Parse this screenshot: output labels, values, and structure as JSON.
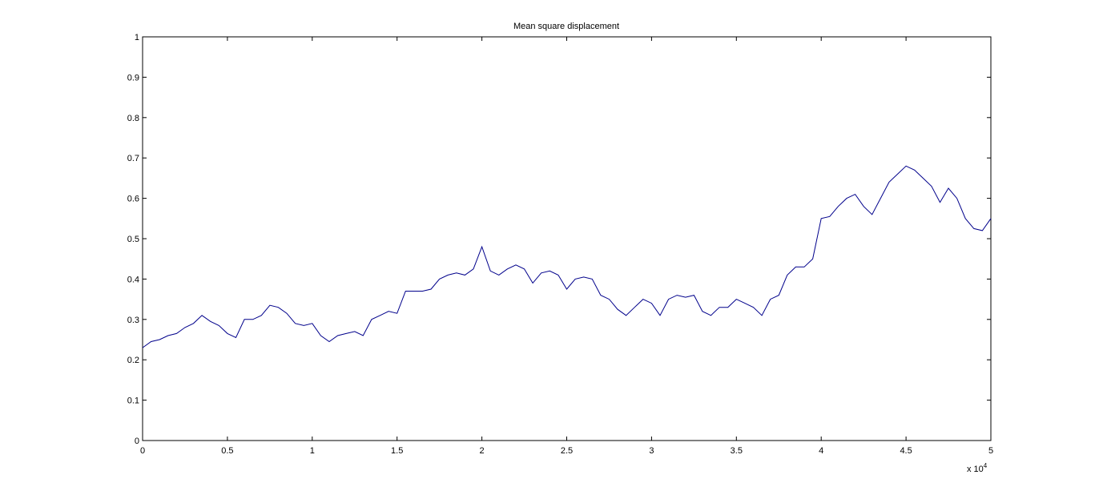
{
  "chart_data": {
    "type": "line",
    "title": "Mean square displacement",
    "xlabel": "",
    "ylabel": "",
    "x_multiplier_label": {
      "base": "x 10",
      "exponent": "4"
    },
    "xlim": [
      0,
      5
    ],
    "ylim": [
      0,
      1
    ],
    "xticks": [
      "0",
      "0.5",
      "1",
      "1.5",
      "2",
      "2.5",
      "3",
      "3.5",
      "4",
      "4.5",
      "5"
    ],
    "yticks": [
      "0",
      "0.1",
      "0.2",
      "0.3",
      "0.4",
      "0.5",
      "0.6",
      "0.7",
      "0.8",
      "0.9",
      "1"
    ],
    "grid": false,
    "line_color": "#00008b",
    "series": [
      {
        "x": [
          0,
          0.05,
          0.1,
          0.15,
          0.2,
          0.25,
          0.3,
          0.35,
          0.4,
          0.45,
          0.5,
          0.55,
          0.6,
          0.65,
          0.7,
          0.75,
          0.8,
          0.85,
          0.9,
          0.95,
          1.0,
          1.05,
          1.1,
          1.15,
          1.2,
          1.25,
          1.3,
          1.35,
          1.4,
          1.45,
          1.5,
          1.55,
          1.6,
          1.65,
          1.7,
          1.75,
          1.8,
          1.85,
          1.9,
          1.95,
          2.0,
          2.05,
          2.1,
          2.15,
          2.2,
          2.25,
          2.3,
          2.35,
          2.4,
          2.45,
          2.5,
          2.55,
          2.6,
          2.65,
          2.7,
          2.75,
          2.8,
          2.85,
          2.9,
          2.95,
          3.0,
          3.05,
          3.1,
          3.15,
          3.2,
          3.25,
          3.3,
          3.35,
          3.4,
          3.45,
          3.5,
          3.55,
          3.6,
          3.65,
          3.7,
          3.75,
          3.8,
          3.85,
          3.9,
          3.95,
          4.0,
          4.05,
          4.1,
          4.15,
          4.2,
          4.25,
          4.3,
          4.35,
          4.4,
          4.45,
          4.5,
          4.55,
          4.6,
          4.65,
          4.7,
          4.75,
          4.8,
          4.85,
          4.9,
          4.95,
          5.0
        ],
        "y": [
          0.23,
          0.245,
          0.25,
          0.26,
          0.265,
          0.28,
          0.29,
          0.31,
          0.295,
          0.285,
          0.265,
          0.255,
          0.3,
          0.3,
          0.31,
          0.335,
          0.33,
          0.315,
          0.29,
          0.285,
          0.29,
          0.26,
          0.245,
          0.26,
          0.265,
          0.27,
          0.26,
          0.3,
          0.31,
          0.32,
          0.315,
          0.37,
          0.37,
          0.37,
          0.375,
          0.4,
          0.41,
          0.415,
          0.41,
          0.425,
          0.48,
          0.42,
          0.41,
          0.425,
          0.435,
          0.425,
          0.39,
          0.415,
          0.42,
          0.41,
          0.375,
          0.4,
          0.405,
          0.4,
          0.36,
          0.35,
          0.325,
          0.31,
          0.33,
          0.35,
          0.34,
          0.31,
          0.35,
          0.36,
          0.355,
          0.36,
          0.32,
          0.31,
          0.33,
          0.33,
          0.35,
          0.34,
          0.33,
          0.31,
          0.35,
          0.36,
          0.41,
          0.43,
          0.43,
          0.45,
          0.55,
          0.555,
          0.58,
          0.6,
          0.61,
          0.58,
          0.56,
          0.6,
          0.64,
          0.66,
          0.68,
          0.67,
          0.65,
          0.63,
          0.59,
          0.625,
          0.6,
          0.55,
          0.525,
          0.52,
          0.55
        ]
      }
    ]
  }
}
